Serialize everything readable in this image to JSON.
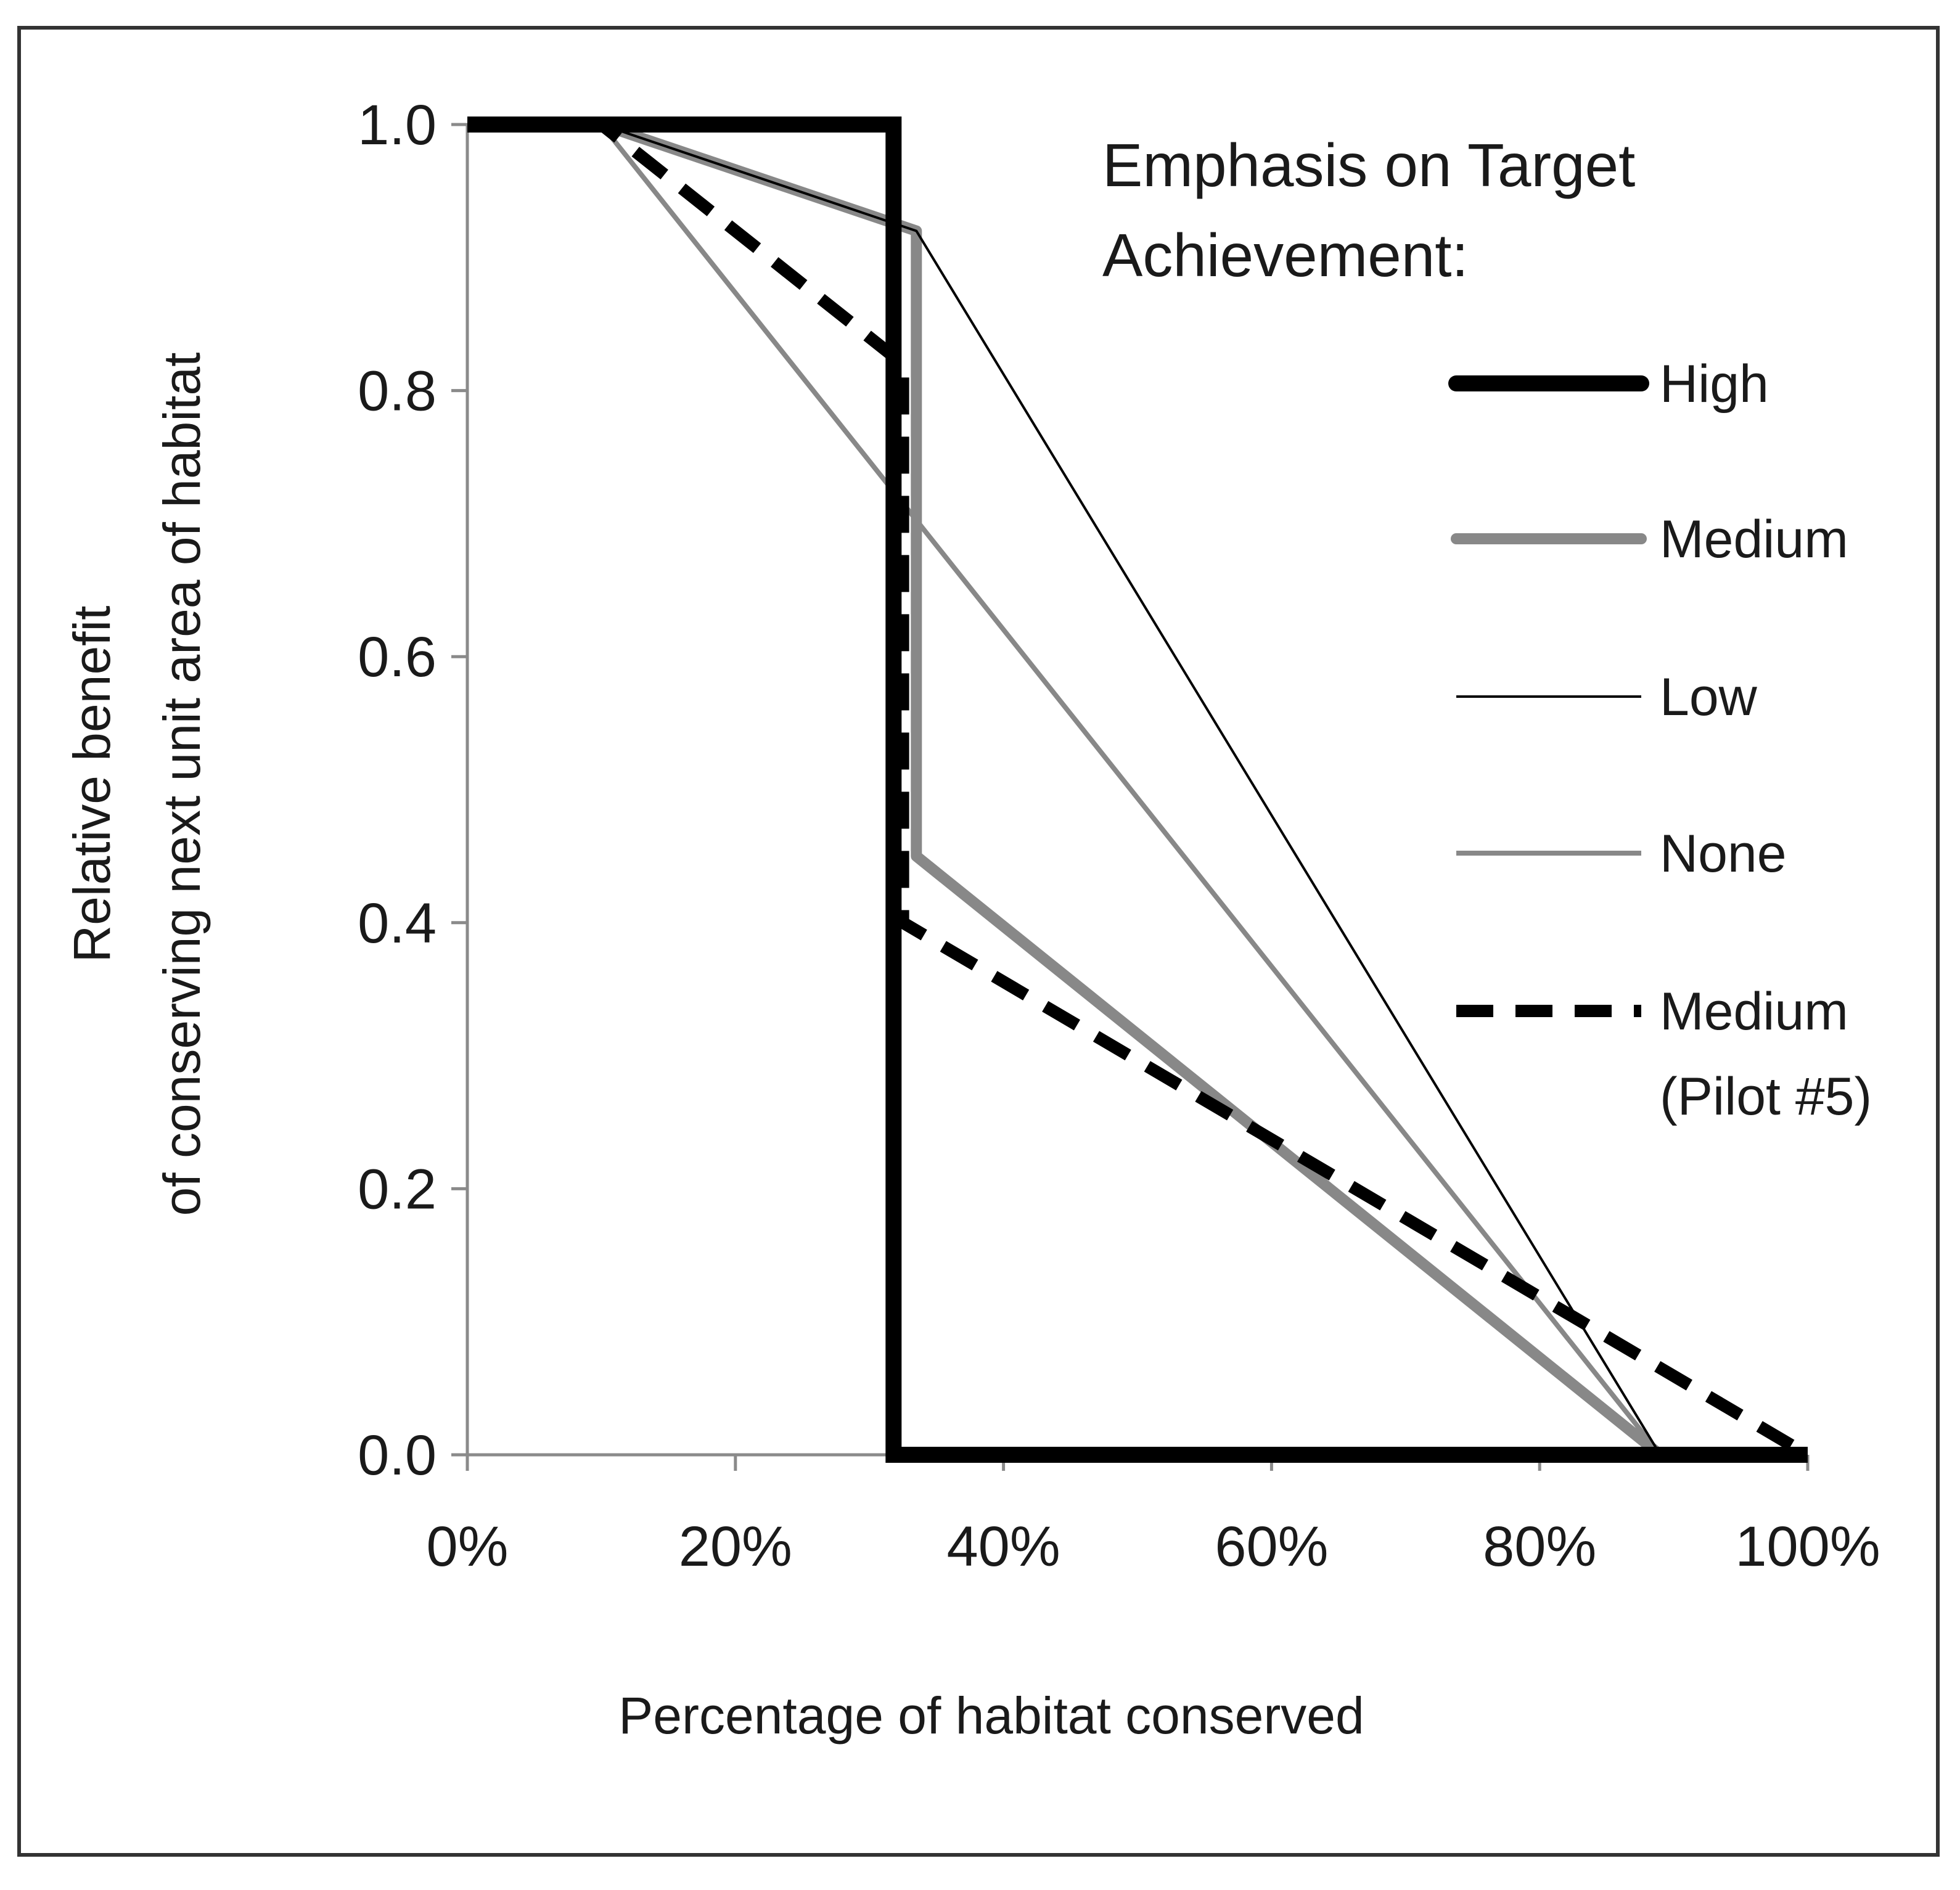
{
  "chart_data": {
    "type": "line",
    "title": "",
    "xlabel": "Percentage of habitat conserved",
    "ylabel_lines": [
      "Relative benefit",
      "of conserving next unit area of habitat"
    ],
    "xlim": [
      0,
      100
    ],
    "ylim": [
      0,
      1
    ],
    "x_ticks": [
      0,
      20,
      40,
      60,
      80,
      100
    ],
    "x_tick_labels": [
      "0%",
      "20%",
      "40%",
      "60%",
      "80%",
      "100%"
    ],
    "y_ticks": [
      0,
      0.2,
      0.4,
      0.6,
      0.8,
      1.0
    ],
    "y_tick_labels": [
      "0.0",
      "0.2",
      "0.4",
      "0.6",
      "0.8",
      "1.0"
    ],
    "grid": false,
    "legend_title": [
      "Emphasis on Target",
      "Achievement:"
    ],
    "legend_position": "right",
    "series": [
      {
        "name": "High",
        "style": "thick-black",
        "points": [
          [
            0,
            1.0
          ],
          [
            31.8,
            1.0
          ],
          [
            31.8,
            0.0
          ],
          [
            100,
            0.0
          ]
        ]
      },
      {
        "name": "Medium",
        "style": "thick-gray",
        "points": [
          [
            0,
            1.0
          ],
          [
            10,
            1.0
          ],
          [
            33.5,
            0.92
          ],
          [
            33.5,
            0.45
          ],
          [
            89,
            0.0
          ],
          [
            100,
            0.0
          ]
        ]
      },
      {
        "name": "Low",
        "style": "thin-black",
        "points": [
          [
            0,
            1.0
          ],
          [
            10,
            1.0
          ],
          [
            33.5,
            0.92
          ],
          [
            89,
            0.0
          ],
          [
            100,
            0.0
          ]
        ]
      },
      {
        "name": "None",
        "style": "thin-gray",
        "points": [
          [
            0,
            1.0
          ],
          [
            10,
            1.0
          ],
          [
            89,
            0.0
          ],
          [
            100,
            0.0
          ]
        ]
      },
      {
        "name": "Medium",
        "name_line2": "(Pilot #5)",
        "style": "dashed-black",
        "points": [
          [
            0,
            1.0
          ],
          [
            10,
            1.0
          ],
          [
            32.5,
            0.82
          ],
          [
            32.5,
            0.4
          ],
          [
            100,
            0.0
          ]
        ]
      }
    ]
  },
  "colors": {
    "black": "#000000",
    "gray": "#888888",
    "axis": "#8a8a8a"
  }
}
